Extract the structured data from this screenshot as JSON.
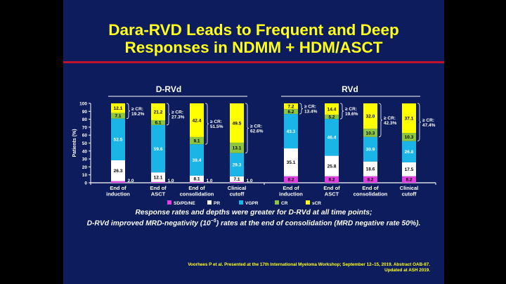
{
  "title": [
    "Dara-RVD Leads to Frequent and Deep",
    "Responses in NDMM + HDM/ASCT"
  ],
  "note": [
    "Response rates and depths were greater for D-RVd at all time points;",
    "D-RVd improved MRD-negativity (10",
    "−5",
    ") rates at the end of consolidation (MRD negative rate 50%)."
  ],
  "citation": [
    "Voorhees P et al. Presented at the 17th International Myeloma Workshop; September 12–15, 2019. Abstract OAB-87.",
    "Updated at ASH 2019."
  ],
  "chart_data": {
    "type": "bar",
    "stacked": true,
    "ylabel": "Patients (%)",
    "ylim": [
      0,
      100
    ],
    "yticks": [
      0,
      10,
      20,
      30,
      40,
      50,
      60,
      70,
      80,
      90,
      100
    ],
    "legend_position": "bottom",
    "legend": [
      {
        "name": "SD/PD/NE",
        "color": "#e040e0"
      },
      {
        "name": "PR",
        "color": "#ffffff"
      },
      {
        "name": "VGPR",
        "color": "#1ab4e6"
      },
      {
        "name": "CR",
        "color": "#8cc63f"
      },
      {
        "name": "sCR",
        "color": "#ffff00"
      }
    ],
    "groups": [
      {
        "name": "D-RVd",
        "categories": [
          "End of|induction",
          "End of|ASCT",
          "End of|consolidation",
          "Clinical|cutoff"
        ],
        "series": [
          {
            "name": "SD/PD/NE",
            "values": [
              2.0,
              1.0,
              1.0,
              1.0
            ]
          },
          {
            "name": "PR",
            "values": [
              26.3,
              12.1,
              8.1,
              7.1
            ]
          },
          {
            "name": "VGPR",
            "values": [
              52.5,
              59.6,
              39.4,
              29.3
            ]
          },
          {
            "name": "CR",
            "values": [
              7.1,
              6.1,
              9.1,
              13.1
            ]
          },
          {
            "name": "sCR",
            "values": [
              12.1,
              21.2,
              42.4,
              49.5
            ]
          }
        ],
        "cr_or_better": [
          "≥ CR:|19.2%",
          "≥ CR:|27.3%",
          "≥ CR:|51.5%",
          "≥ CR:|62.6%"
        ]
      },
      {
        "name": "RVd",
        "categories": [
          "End of|induction",
          "End of|ASCT",
          "End of|consolidation",
          "Clinical|cutoff"
        ],
        "series": [
          {
            "name": "SD/PD/NE",
            "values": [
              8.2,
              8.2,
              8.2,
              8.2
            ]
          },
          {
            "name": "PR",
            "values": [
              35.1,
              25.8,
              18.6,
              17.5
            ]
          },
          {
            "name": "VGPR",
            "values": [
              43.3,
              46.4,
              30.9,
              26.8
            ]
          },
          {
            "name": "CR",
            "values": [
              6.2,
              5.2,
              10.3,
              10.3
            ]
          },
          {
            "name": "sCR",
            "values": [
              7.2,
              14.4,
              32.0,
              37.1
            ]
          }
        ],
        "cr_or_better": [
          "≥ CR:|13.4%",
          "≥ CR:|19.6%",
          "≥ CR:|42.3%",
          "≥ CR:|47.4%"
        ]
      }
    ]
  }
}
